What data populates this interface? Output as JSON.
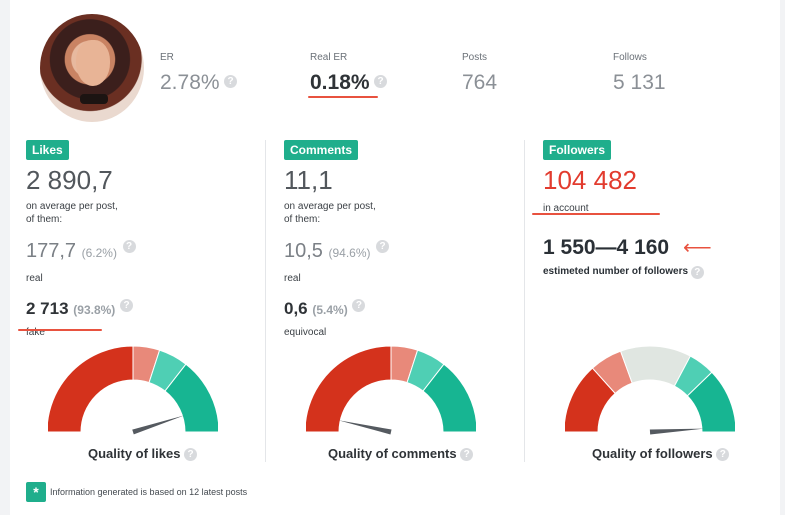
{
  "profile": {
    "stats": [
      {
        "label": "ER",
        "value": "2.78%"
      },
      {
        "label": "Real ER",
        "value": "0.18%"
      },
      {
        "label": "Posts",
        "value": "764"
      },
      {
        "label": "Follows",
        "value": "5 131"
      }
    ]
  },
  "help_glyph": "?",
  "likes": {
    "badge": "Likes",
    "average": "2 890,7",
    "average_note_1": "on average per post,",
    "average_note_2": "of them:",
    "real_value": "177,7",
    "real_pct": "(6.2%)",
    "real_label": "real",
    "fake_value": "2 713",
    "fake_pct": "(93.8%)",
    "fake_label": "fake",
    "quality_title": "Quality of likes",
    "needle_level": 0.9
  },
  "comments": {
    "badge": "Comments",
    "average": "11,1",
    "average_note_1": "on average per post,",
    "average_note_2": "of them:",
    "real_value": "10,5",
    "real_pct": "(94.6%)",
    "real_label": "real",
    "equivocal_value": "0,6",
    "equivocal_pct": "(5.4%)",
    "equivocal_label": "equivocal",
    "quality_title": "Quality of comments",
    "needle_level": 0.07
  },
  "followers": {
    "badge": "Followers",
    "count": "104 482",
    "count_label": "in account",
    "estimated_range": "1 550—4 160",
    "estimated_label": "estimeted number of followers",
    "quality_title": "Quality of followers",
    "needle_level": 0.98
  },
  "footer": {
    "badge": "*",
    "text": "Information generated is based on 12 latest posts"
  },
  "colors": {
    "accent": "#1fae8c",
    "red": "#d4321c",
    "salmon": "#e8897a",
    "light_green": "#4fcfb4",
    "green": "#17b592",
    "neutral": "#e0e6e1",
    "underline": "#e8523f"
  }
}
